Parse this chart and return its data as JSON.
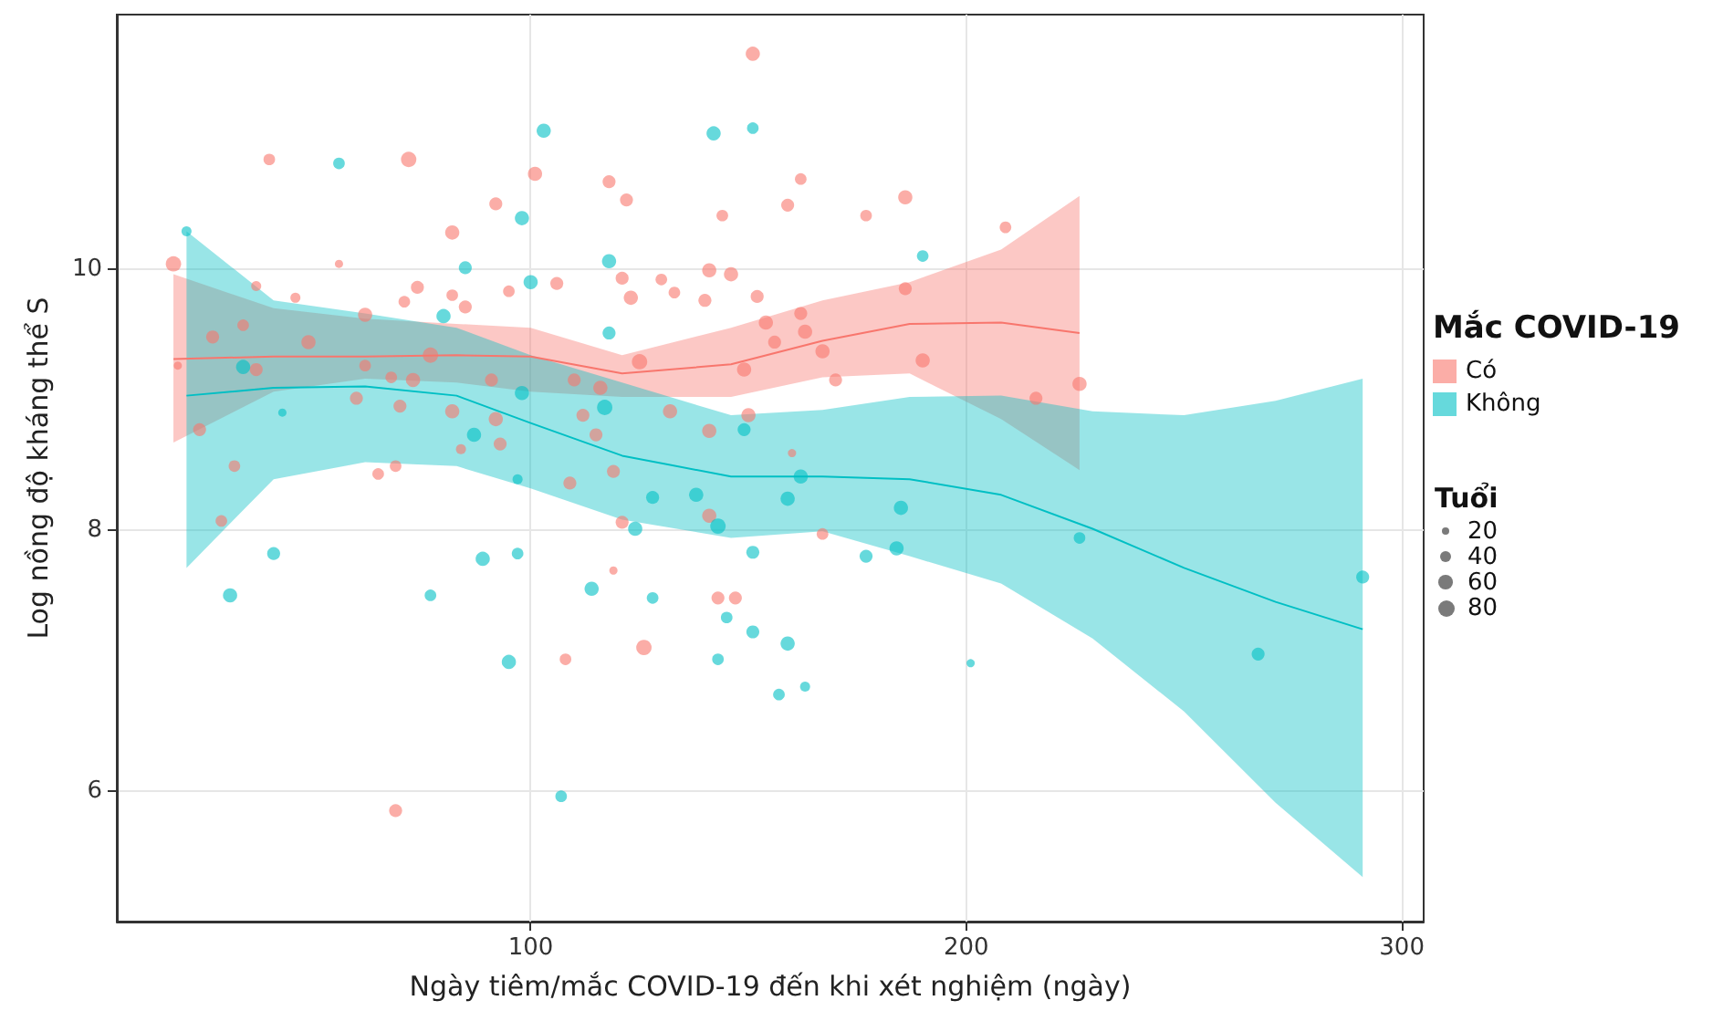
{
  "chart_data": {
    "type": "bubble",
    "xlabel": "Ngày tiêm/mắc COVID-19 đến khi xét nghiệm (ngày)",
    "ylabel": "Log nồng độ kháng thể S",
    "legend_title": "Mắc COVID-19",
    "annotations": [
      "Tuổi"
    ],
    "xlim": [
      5,
      305
    ],
    "ylim": [
      5,
      11.95
    ],
    "xticks": [
      100,
      200,
      300
    ],
    "yticks": [
      6,
      8,
      10
    ],
    "grid": true,
    "legend": "right",
    "marker": "circle",
    "size_legend": [
      20,
      40,
      60,
      80
    ],
    "series": [
      {
        "name": "Có",
        "color": "#f8766d",
        "x": [
          18,
          40,
          72,
          92,
          82,
          101,
          56,
          37,
          46,
          71,
          74,
          82,
          85,
          95,
          65,
          69,
          69,
          19,
          151,
          118,
          122,
          144,
          162,
          159,
          106,
          121,
          123,
          130,
          133,
          141,
          146,
          140,
          152,
          154,
          162,
          125,
          150,
          121,
          119,
          143,
          147,
          126,
          108,
          170,
          186,
          177,
          209,
          226,
          27,
          34,
          49,
          62,
          62,
          68,
          77,
          73,
          70,
          60,
          24,
          32,
          29,
          82,
          84,
          92,
          93,
          91,
          37,
          110,
          116,
          112,
          115,
          109,
          119,
          132,
          141,
          149,
          156,
          163,
          167,
          167,
          141,
          160,
          186,
          190,
          216
        ],
        "values": [
          10.04,
          10.84,
          10.84,
          10.5,
          10.28,
          10.73,
          10.04,
          9.87,
          9.78,
          9.75,
          9.86,
          9.8,
          9.71,
          9.83,
          8.43,
          8.49,
          5.85,
          9.26,
          11.65,
          10.67,
          10.53,
          10.41,
          10.69,
          10.49,
          9.89,
          9.93,
          9.78,
          9.92,
          9.82,
          9.99,
          9.96,
          9.76,
          9.79,
          9.59,
          9.66,
          9.29,
          8.88,
          8.06,
          7.69,
          7.48,
          7.48,
          7.1,
          7.01,
          9.15,
          10.55,
          10.41,
          10.32,
          9.12,
          9.48,
          9.57,
          9.44,
          9.65,
          9.26,
          9.17,
          9.34,
          9.15,
          8.95,
          9.01,
          8.77,
          8.49,
          8.07,
          8.91,
          8.62,
          8.85,
          8.66,
          9.15,
          9.23,
          9.15,
          9.09,
          8.88,
          8.73,
          8.36,
          8.45,
          8.91,
          8.76,
          9.23,
          9.44,
          9.52,
          9.37,
          7.97,
          8.11,
          8.59,
          9.85,
          9.3,
          9.01
        ],
        "sizes": [
          70,
          40,
          70,
          50,
          60,
          60,
          20,
          30,
          30,
          40,
          50,
          40,
          50,
          40,
          40,
          40,
          50,
          20,
          60,
          50,
          50,
          40,
          40,
          50,
          50,
          50,
          60,
          40,
          40,
          60,
          60,
          50,
          50,
          60,
          50,
          70,
          60,
          50,
          20,
          50,
          50,
          70,
          40,
          50,
          60,
          40,
          40,
          60,
          50,
          40,
          60,
          60,
          40,
          40,
          70,
          60,
          50,
          50,
          50,
          40,
          40,
          60,
          30,
          60,
          50,
          50,
          50,
          50,
          60,
          50,
          50,
          50,
          50,
          60,
          60,
          60,
          50,
          60,
          60,
          40,
          60,
          20,
          50,
          60,
          50
        ]
      },
      {
        "name": "Không",
        "color": "#00bfc4",
        "x": [
          21,
          56,
          103,
          98,
          85,
          100,
          80,
          31,
          41,
          89,
          97,
          77,
          95,
          97,
          43,
          87,
          34,
          98,
          142,
          151,
          118,
          118,
          117,
          128,
          138,
          143,
          124,
          151,
          159,
          162,
          149,
          114,
          128,
          145,
          151,
          159,
          143,
          157,
          163,
          107,
          190,
          185,
          184,
          177,
          226,
          201,
          267,
          291
        ],
        "values": [
          10.29,
          10.81,
          11.06,
          10.39,
          10.01,
          9.9,
          9.64,
          7.5,
          7.82,
          7.78,
          7.82,
          7.5,
          6.99,
          8.39,
          8.9,
          8.73,
          9.25,
          9.05,
          11.04,
          11.08,
          10.06,
          9.51,
          8.94,
          8.25,
          8.27,
          8.03,
          8.01,
          7.83,
          8.24,
          8.41,
          8.77,
          7.55,
          7.48,
          7.33,
          7.22,
          7.13,
          7.01,
          6.74,
          6.8,
          5.96,
          10.1,
          8.17,
          7.86,
          7.8,
          7.94,
          6.98,
          7.05,
          7.64
        ],
        "sizes": [
          30,
          40,
          60,
          60,
          50,
          60,
          60,
          60,
          50,
          60,
          40,
          40,
          60,
          30,
          20,
          60,
          60,
          60,
          60,
          40,
          60,
          50,
          70,
          50,
          60,
          70,
          60,
          50,
          60,
          60,
          50,
          60,
          40,
          40,
          50,
          60,
          40,
          40,
          30,
          40,
          40,
          60,
          60,
          50,
          40,
          20,
          50,
          50
        ]
      },
      {
        "type": "line",
        "color": "#f8766d",
        "marker": "none",
        "line_style": "solid",
        "x": [
          18,
          41,
          62,
          83,
          100,
          121,
          146,
          167,
          187,
          208,
          226
        ],
        "values": [
          9.31,
          9.33,
          9.33,
          9.34,
          9.33,
          9.2,
          9.27,
          9.45,
          9.58,
          9.59,
          9.51
        ],
        "upper": [
          9.96,
          9.7,
          9.62,
          9.58,
          9.55,
          9.34,
          9.55,
          9.76,
          9.9,
          10.15,
          10.56
        ],
        "lower": [
          8.67,
          9.06,
          9.16,
          9.13,
          9.06,
          9.02,
          9.02,
          9.17,
          9.2,
          8.85,
          8.46
        ]
      },
      {
        "type": "line",
        "color": "#00bfc4",
        "marker": "none",
        "line_style": "solid",
        "x": [
          21,
          41,
          62,
          83,
          100,
          121,
          146,
          167,
          187,
          208,
          229,
          250,
          271,
          291
        ],
        "values": [
          9.03,
          9.09,
          9.1,
          9.03,
          8.82,
          8.57,
          8.41,
          8.41,
          8.39,
          8.27,
          8.01,
          7.71,
          7.45,
          7.24
        ],
        "upper": [
          10.29,
          9.76,
          9.66,
          9.55,
          9.34,
          9.13,
          8.88,
          8.92,
          9.02,
          9.03,
          8.91,
          8.88,
          8.99,
          9.16
        ],
        "lower": [
          7.71,
          8.39,
          8.52,
          8.49,
          8.32,
          8.08,
          7.94,
          7.99,
          7.8,
          7.59,
          7.17,
          6.61,
          5.91,
          5.34
        ]
      }
    ]
  }
}
